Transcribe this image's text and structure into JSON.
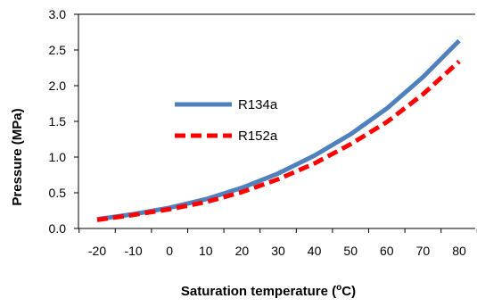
{
  "chart_data": {
    "type": "line",
    "title": "",
    "xlabel": "Saturation temperature (",
    "xlabel_superscript": "o",
    "xlabel_suffix": "C)",
    "ylabel": "Pressure (MPa)",
    "x": [
      -20,
      -10,
      0,
      10,
      20,
      30,
      40,
      50,
      60,
      70,
      80
    ],
    "x_tick_labels": [
      "-20",
      "-10",
      "0",
      "10",
      "20",
      "30",
      "40",
      "50",
      "60",
      "70",
      "80"
    ],
    "y_ticks": [
      0.0,
      0.5,
      1.0,
      1.5,
      2.0,
      2.5,
      3.0
    ],
    "y_tick_labels": [
      "0.0",
      "0.5",
      "1.0",
      "1.5",
      "2.0",
      "2.5",
      "3.0"
    ],
    "ylim": [
      0,
      3.0
    ],
    "grid": false,
    "legend_position": "center-left",
    "series": [
      {
        "name": "R134a",
        "color": "#4F81BD",
        "line_style": "solid",
        "values": [
          0.13,
          0.2,
          0.29,
          0.41,
          0.57,
          0.77,
          1.02,
          1.32,
          1.68,
          2.12,
          2.63
        ]
      },
      {
        "name": "R152a",
        "color": "#FF0000",
        "line_style": "dashed",
        "values": [
          0.12,
          0.19,
          0.27,
          0.37,
          0.51,
          0.69,
          0.91,
          1.18,
          1.49,
          1.88,
          2.34
        ]
      }
    ]
  }
}
